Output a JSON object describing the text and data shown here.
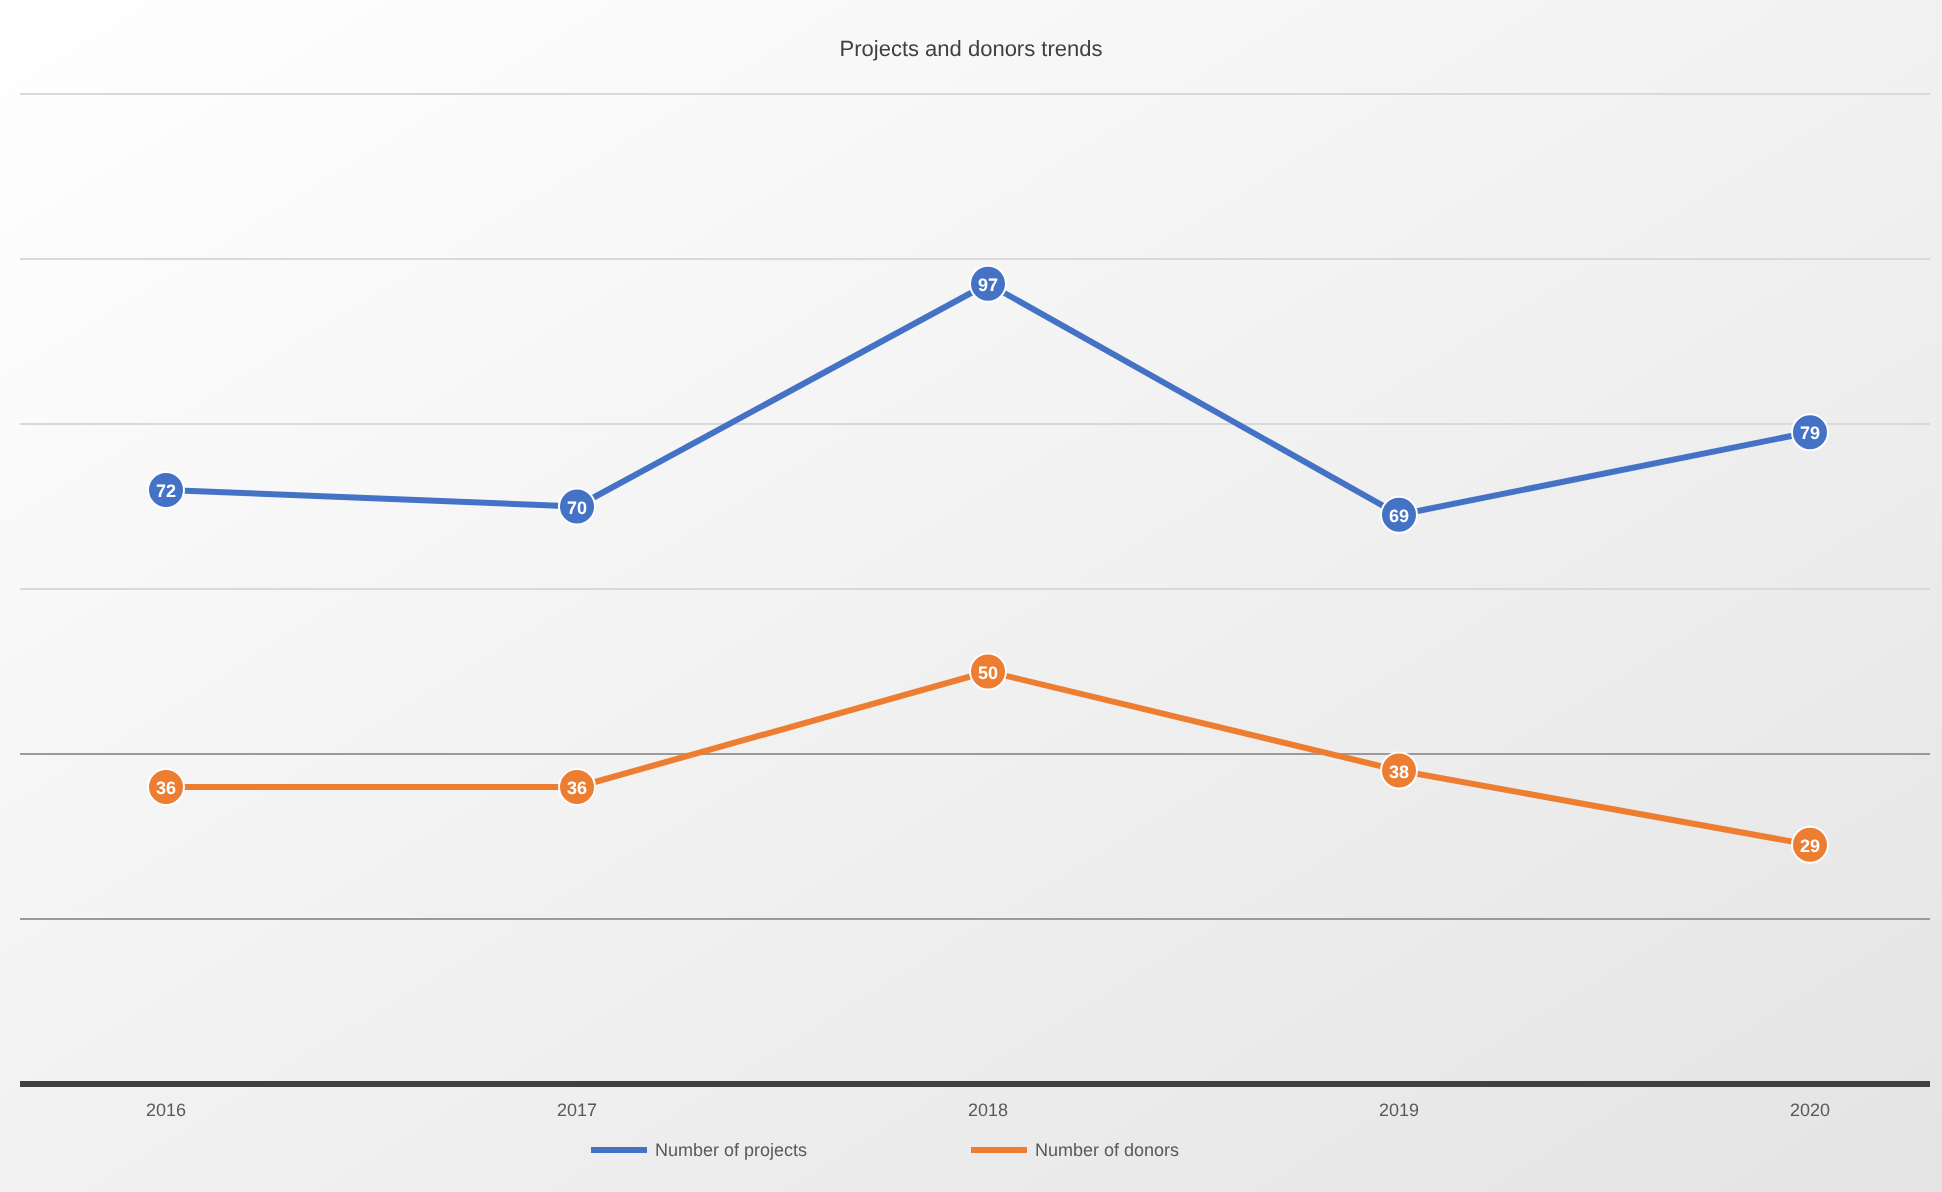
{
  "chart_data": {
    "type": "line",
    "title": "Projects and donors trends",
    "categories": [
      "2016",
      "2017",
      "2018",
      "2019",
      "2020"
    ],
    "series": [
      {
        "name": "Number of projects",
        "color": "#4472c4",
        "values": [
          72,
          70,
          97,
          69,
          79
        ]
      },
      {
        "name": "Number of donors",
        "color": "#ed7d31",
        "values": [
          36,
          36,
          50,
          38,
          29
        ]
      }
    ],
    "ylim": [
      0,
      120
    ],
    "yticks": [
      {
        "value": 0,
        "label": null
      },
      {
        "value": 20,
        "label": null
      },
      {
        "value": 40,
        "label": null
      },
      {
        "value": 60,
        "label": null
      },
      {
        "value": 80,
        "label": null
      },
      {
        "value": 100,
        "label": null
      },
      {
        "value": 120,
        "label": null
      }
    ],
    "tick_labels": "x",
    "data_labels": true,
    "grid": "y",
    "legend": "bottom",
    "marker": "circle",
    "line_style": "solid"
  }
}
